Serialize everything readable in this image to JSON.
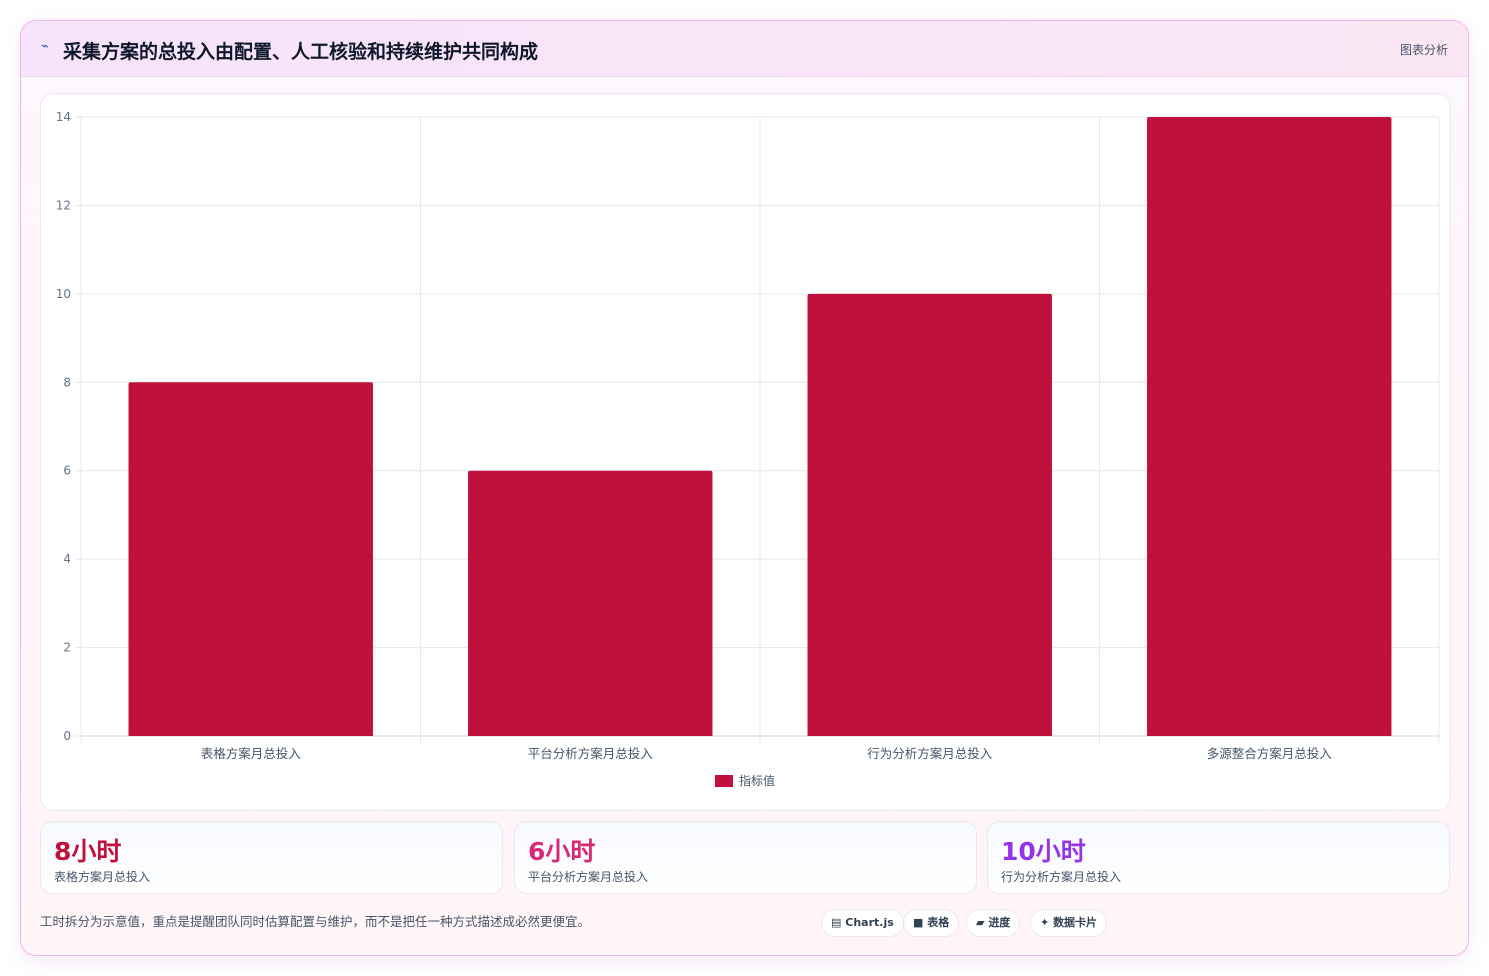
{
  "header": {
    "icon": "chart-line-icon",
    "title": "采集方案的总投入由配置、人工核验和持续维护共同构成",
    "tag": "图表分析"
  },
  "chart_data": {
    "type": "bar",
    "categories": [
      "表格方案月总投入",
      "平台分析方案月总投入",
      "行为分析方案月总投入",
      "多源整合方案月总投入"
    ],
    "series": [
      {
        "name": "指标值",
        "values": [
          8,
          6,
          10,
          14
        ],
        "color": "#be123c"
      }
    ],
    "ylim": [
      0,
      14
    ],
    "yticks": [
      0,
      2,
      4,
      6,
      8,
      10,
      12,
      14
    ],
    "grid": true,
    "legend_position": "bottom"
  },
  "stats": [
    {
      "value": "8小时",
      "label": "表格方案月总投入",
      "color": "#be123c"
    },
    {
      "value": "6小时",
      "label": "平台分析方案月总投入",
      "color": "#db2777"
    },
    {
      "value": "10小时",
      "label": "行为分析方案月总投入",
      "color": "#9333ea"
    }
  ],
  "footer": {
    "note": "工时拆分为示意值，重点是提醒团队同时估算配置与维护，而不是把任一种方式描述成必然更便宜。",
    "chips": [
      {
        "icon": "chart-icon",
        "label": "Chart.js"
      },
      {
        "icon": "table-icon",
        "label": "表格"
      },
      {
        "icon": "progress-icon",
        "label": "进度"
      },
      {
        "icon": "sparkle-icon",
        "label": "数据卡片"
      }
    ]
  }
}
